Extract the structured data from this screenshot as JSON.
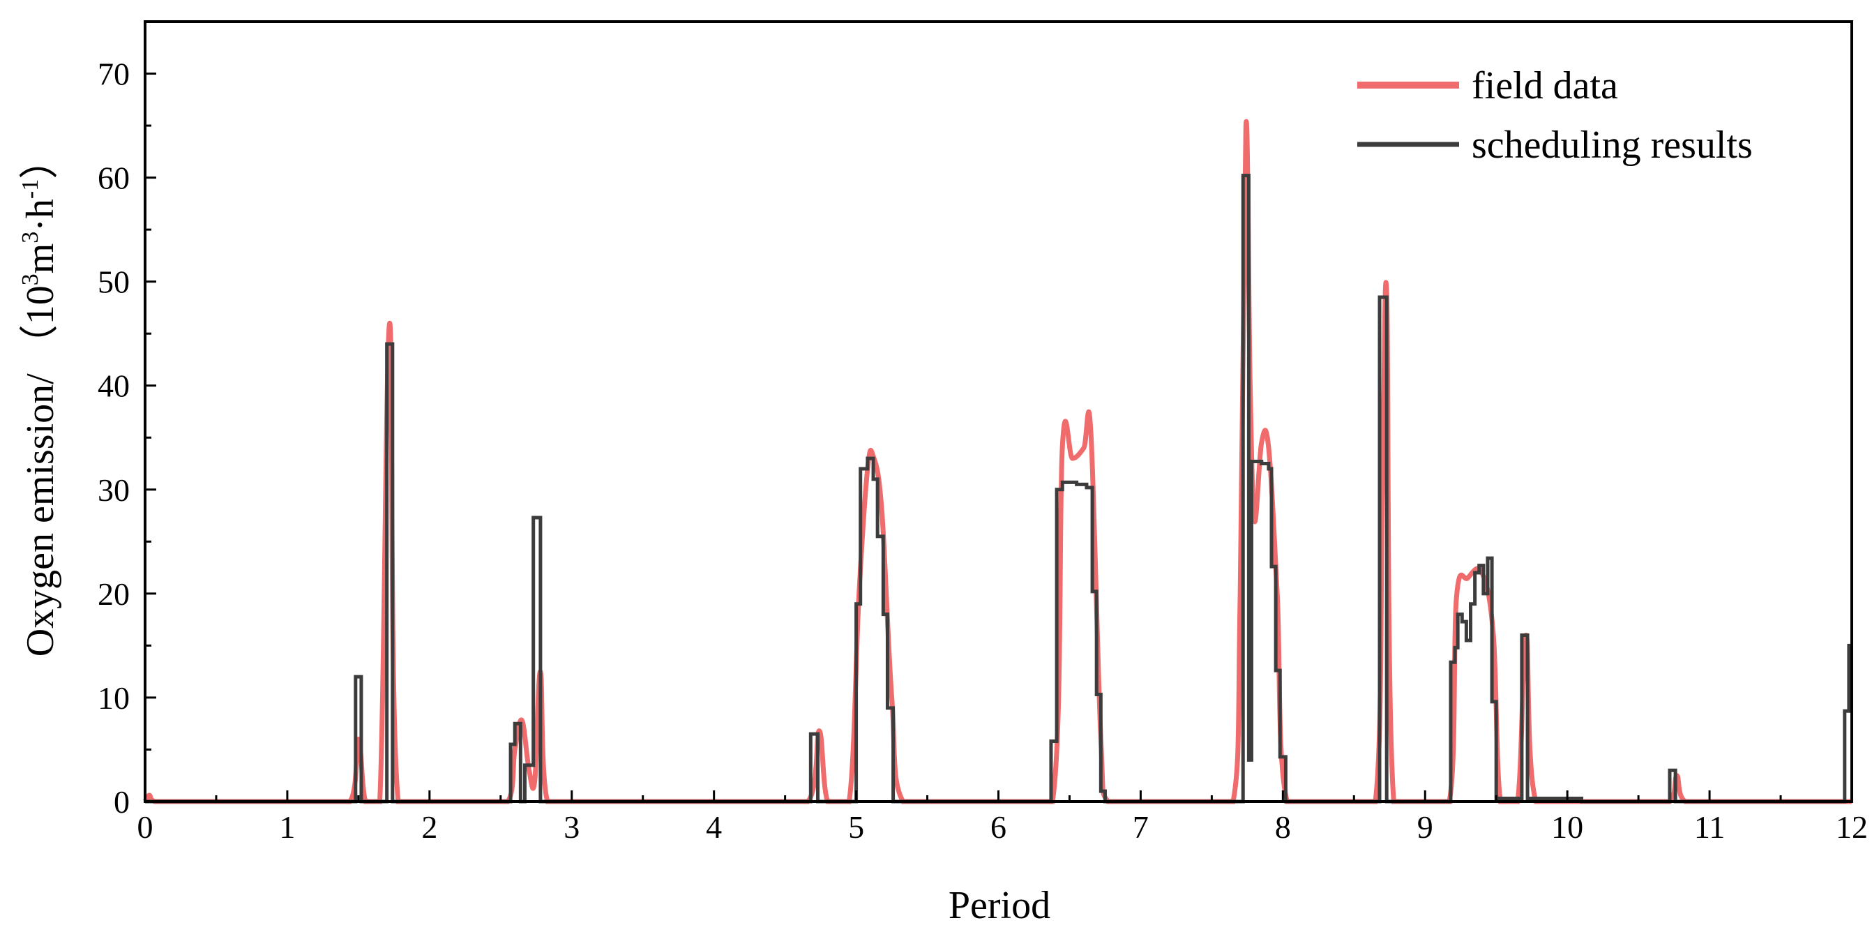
{
  "chart_data": {
    "type": "line",
    "title": "",
    "xlabel": "Period",
    "ylabel": {
      "prefix": "Oxygen emission/ （10",
      "sup1": "3",
      "mid": "m",
      "sup2": "3",
      "mid2": "·h",
      "sup3": "-1",
      "suffix": "）"
    },
    "xlim": [
      0,
      12
    ],
    "ylim": [
      0,
      75
    ],
    "xticks": [
      0,
      1,
      2,
      3,
      4,
      5,
      6,
      7,
      8,
      9,
      10,
      11,
      12
    ],
    "xtick_labels": [
      "0",
      "1",
      "2",
      "3",
      "4",
      "5",
      "6",
      "7",
      "8",
      "9",
      "10",
      "11",
      "12"
    ],
    "yticks": [
      0,
      10,
      20,
      30,
      40,
      50,
      60,
      70
    ],
    "ytick_labels": [
      "0",
      "10",
      "20",
      "30",
      "40",
      "50",
      "60",
      "70"
    ],
    "grid": false,
    "legend": {
      "position": "top-right"
    },
    "series": [
      {
        "name": "field data",
        "color": "#f06b6b",
        "style": "smooth",
        "values": [
          [
            0,
            0
          ],
          [
            0.03,
            0.6
          ],
          [
            0.07,
            0
          ],
          [
            1.44,
            0
          ],
          [
            1.5,
            6
          ],
          [
            1.55,
            0
          ],
          [
            1.65,
            0
          ],
          [
            1.72,
            46
          ],
          [
            1.78,
            0
          ],
          [
            2.55,
            0
          ],
          [
            2.6,
            5
          ],
          [
            2.65,
            7.8
          ],
          [
            2.7,
            3
          ],
          [
            2.74,
            2
          ],
          [
            2.78,
            12.5
          ],
          [
            2.83,
            0
          ],
          [
            4.66,
            0
          ],
          [
            4.74,
            6.8
          ],
          [
            4.8,
            0
          ],
          [
            4.95,
            0
          ],
          [
            5.02,
            20
          ],
          [
            5.08,
            32
          ],
          [
            5.12,
            33.2
          ],
          [
            5.18,
            28
          ],
          [
            5.25,
            10
          ],
          [
            5.33,
            0
          ],
          [
            6.38,
            0
          ],
          [
            6.45,
            34.2
          ],
          [
            6.52,
            33
          ],
          [
            6.6,
            34
          ],
          [
            6.65,
            35.5
          ],
          [
            6.72,
            6
          ],
          [
            6.77,
            0
          ],
          [
            7.65,
            0
          ],
          [
            7.7,
            20
          ],
          [
            7.74,
            65
          ],
          [
            7.77,
            40
          ],
          [
            7.8,
            27
          ],
          [
            7.85,
            34.5
          ],
          [
            7.9,
            34
          ],
          [
            7.96,
            20
          ],
          [
            8.03,
            0
          ],
          [
            8.65,
            0
          ],
          [
            8.7,
            30
          ],
          [
            8.73,
            48.8
          ],
          [
            8.78,
            0
          ],
          [
            9.17,
            0
          ],
          [
            9.22,
            19.5
          ],
          [
            9.3,
            21.5
          ],
          [
            9.4,
            22
          ],
          [
            9.48,
            16
          ],
          [
            9.53,
            0
          ],
          [
            9.65,
            0
          ],
          [
            9.71,
            16
          ],
          [
            9.78,
            0
          ],
          [
            10.72,
            0
          ],
          [
            10.77,
            2.5
          ],
          [
            10.83,
            0
          ],
          [
            12,
            0
          ]
        ]
      },
      {
        "name": "scheduling results",
        "color": "#3c3c3c",
        "style": "step",
        "values": [
          [
            0,
            0
          ],
          [
            1.48,
            0
          ],
          [
            1.48,
            12
          ],
          [
            1.52,
            12
          ],
          [
            1.52,
            0
          ],
          [
            1.7,
            0
          ],
          [
            1.7,
            44
          ],
          [
            1.74,
            44
          ],
          [
            1.74,
            0
          ],
          [
            2.57,
            0
          ],
          [
            2.57,
            5.5
          ],
          [
            2.6,
            5.5
          ],
          [
            2.6,
            7.5
          ],
          [
            2.64,
            7.5
          ],
          [
            2.64,
            0
          ],
          [
            2.67,
            0
          ],
          [
            2.67,
            3.5
          ],
          [
            2.73,
            3.5
          ],
          [
            2.73,
            27.3
          ],
          [
            2.78,
            27.3
          ],
          [
            2.78,
            0
          ],
          [
            4.68,
            0
          ],
          [
            4.68,
            6.5
          ],
          [
            4.73,
            6.5
          ],
          [
            4.73,
            0
          ],
          [
            5.0,
            0
          ],
          [
            5.0,
            19
          ],
          [
            5.03,
            19
          ],
          [
            5.03,
            32
          ],
          [
            5.08,
            32
          ],
          [
            5.08,
            33
          ],
          [
            5.12,
            33
          ],
          [
            5.12,
            31
          ],
          [
            5.15,
            31
          ],
          [
            5.15,
            25.5
          ],
          [
            5.19,
            25.5
          ],
          [
            5.19,
            18
          ],
          [
            5.22,
            18
          ],
          [
            5.22,
            9
          ],
          [
            5.26,
            9
          ],
          [
            5.26,
            0
          ],
          [
            6.37,
            0
          ],
          [
            6.37,
            5.8
          ],
          [
            6.41,
            5.8
          ],
          [
            6.41,
            30
          ],
          [
            6.45,
            30
          ],
          [
            6.45,
            30.7
          ],
          [
            6.55,
            30.7
          ],
          [
            6.55,
            30.5
          ],
          [
            6.62,
            30.5
          ],
          [
            6.62,
            30.2
          ],
          [
            6.66,
            30.2
          ],
          [
            6.66,
            20.2
          ],
          [
            6.69,
            20.2
          ],
          [
            6.69,
            10.3
          ],
          [
            6.72,
            10.3
          ],
          [
            6.72,
            1
          ],
          [
            6.75,
            1
          ],
          [
            6.75,
            0
          ],
          [
            7.72,
            0
          ],
          [
            7.72,
            60.2
          ],
          [
            7.76,
            60.2
          ],
          [
            7.76,
            4
          ],
          [
            7.78,
            4
          ],
          [
            7.78,
            32.7
          ],
          [
            7.85,
            32.7
          ],
          [
            7.85,
            32.5
          ],
          [
            7.9,
            32.5
          ],
          [
            7.9,
            32
          ],
          [
            7.92,
            32
          ],
          [
            7.92,
            22.6
          ],
          [
            7.95,
            22.6
          ],
          [
            7.95,
            12.6
          ],
          [
            7.98,
            12.6
          ],
          [
            7.98,
            4.3
          ],
          [
            8.02,
            4.3
          ],
          [
            8.02,
            0
          ],
          [
            8.68,
            0
          ],
          [
            8.68,
            48.5
          ],
          [
            8.73,
            48.5
          ],
          [
            8.73,
            0
          ],
          [
            9.18,
            0
          ],
          [
            9.18,
            13.4
          ],
          [
            9.21,
            13.4
          ],
          [
            9.21,
            14.8
          ],
          [
            9.23,
            14.8
          ],
          [
            9.23,
            18
          ],
          [
            9.26,
            18
          ],
          [
            9.26,
            17.3
          ],
          [
            9.29,
            17.3
          ],
          [
            9.29,
            15.5
          ],
          [
            9.32,
            15.5
          ],
          [
            9.32,
            19
          ],
          [
            9.35,
            19
          ],
          [
            9.35,
            22
          ],
          [
            9.38,
            22
          ],
          [
            9.38,
            22.7
          ],
          [
            9.41,
            22.7
          ],
          [
            9.41,
            20
          ],
          [
            9.44,
            20
          ],
          [
            9.44,
            23.4
          ],
          [
            9.47,
            23.4
          ],
          [
            9.47,
            9.6
          ],
          [
            9.5,
            9.6
          ],
          [
            9.5,
            0.3
          ],
          [
            9.68,
            0.3
          ],
          [
            9.68,
            16
          ],
          [
            9.72,
            16
          ],
          [
            9.72,
            0.3
          ],
          [
            10.1,
            0.3
          ],
          [
            10.1,
            0
          ],
          [
            10.72,
            0
          ],
          [
            10.72,
            3
          ],
          [
            10.76,
            3
          ],
          [
            10.76,
            0
          ],
          [
            11.95,
            0
          ],
          [
            11.95,
            8.7
          ],
          [
            11.98,
            8.7
          ],
          [
            11.98,
            15
          ],
          [
            12,
            15
          ]
        ]
      }
    ]
  }
}
